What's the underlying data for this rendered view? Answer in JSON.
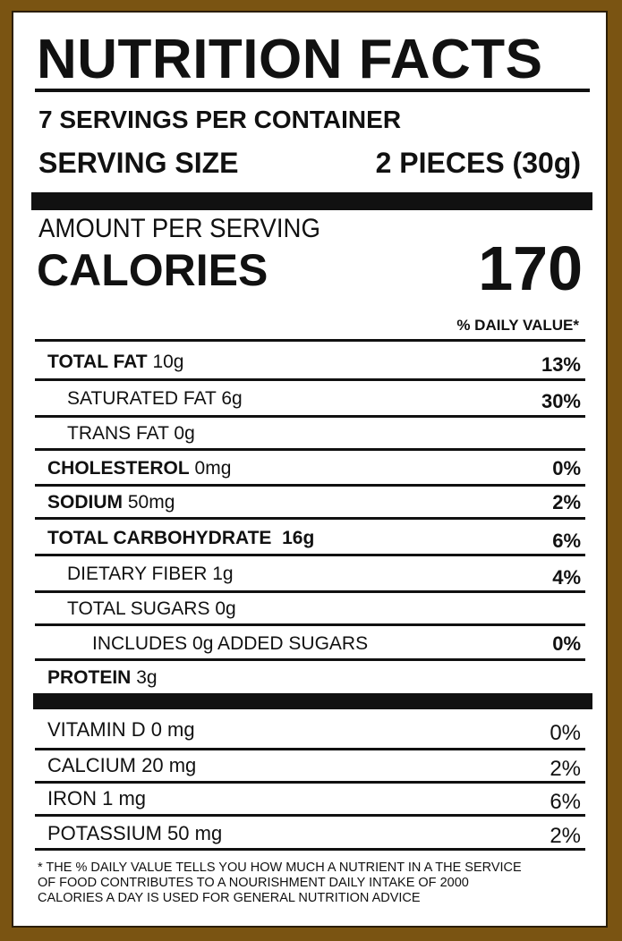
{
  "title": "NUTRITION FACTS",
  "servings_per_container": "7 SERVINGS PER CONTAINER",
  "serving_size": {
    "label": "SERVING SIZE",
    "value": "2 PIECES (30g)"
  },
  "amount_per_serving": "AMOUNT PER SERVING",
  "calories": {
    "label": "CALORIES",
    "value": "170"
  },
  "daily_value_header": "% DAILY VALUE*",
  "nutrients": [
    {
      "name": "TOTAL FAT",
      "amount": "10g",
      "dv": "13%"
    },
    {
      "name": "SATURATED FAT",
      "amount": "6g",
      "dv": "30%"
    },
    {
      "name": "TRANS FAT",
      "amount": "0g",
      "dv": ""
    },
    {
      "name": "CHOLESTEROL",
      "amount": "0mg",
      "dv": "0%"
    },
    {
      "name": "SODIUM",
      "amount": "50mg",
      "dv": "2%"
    },
    {
      "name": "TOTAL CARBOHYDRATE",
      "amount": "16g",
      "dv": "6%"
    },
    {
      "name": "DIETARY FIBER",
      "amount": "1g",
      "dv": "4%"
    },
    {
      "name": "TOTAL SUGARS",
      "amount": "0g",
      "dv": ""
    },
    {
      "name": "INCLUDES 0g ADDED SUGARS",
      "amount": "",
      "dv": "0%"
    },
    {
      "name": "PROTEIN",
      "amount": "3g",
      "dv": ""
    }
  ],
  "vitamins": [
    {
      "label": "VITAMIN D  0 mg",
      "dv": "0%"
    },
    {
      "label": "CALCIUM 20 mg",
      "dv": "2%"
    },
    {
      "label": "IRON 1 mg",
      "dv": "6%"
    },
    {
      "label": "POTASSIUM 50 mg",
      "dv": "2%"
    }
  ],
  "footnote": [
    "* THE % DAILY VALUE TELLS YOU HOW MUCH A NUTRIENT IN A THE SERVICE",
    "OF FOOD CONTRIBUTES TO A NOURISHMENT DAILY INTAKE OF 2000",
    "CALORIES A DAY IS USED FOR GENERAL NUTRITION ADVICE"
  ],
  "colors": {
    "frame": "#7a5412",
    "panel": "#ffffff",
    "ink": "#111111"
  }
}
